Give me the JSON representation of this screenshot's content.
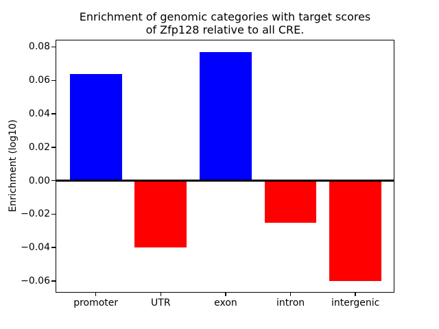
{
  "chart_data": {
    "type": "bar",
    "title": "Enrichment of genomic categories with target scores\nof Zfp128 relative to all CRE.",
    "xlabel": "",
    "ylabel": "Enrichment (log10)",
    "categories": [
      "promoter",
      "UTR",
      "exon",
      "intron",
      "intergenic"
    ],
    "values": [
      0.064,
      -0.04,
      0.077,
      -0.025,
      -0.06
    ],
    "bar_colors": [
      "#0000ff",
      "#ff0000",
      "#0000ff",
      "#ff0000",
      "#ff0000"
    ],
    "positive_color": "#0000ff",
    "negative_color": "#ff0000",
    "yticks": [
      0.08,
      0.06,
      0.04,
      0.02,
      0,
      -0.02,
      -0.04,
      -0.06
    ],
    "ytick_labels": [
      "0.08",
      "0.06",
      "0.04",
      "0.02",
      "0.00",
      "−0.02",
      "−0.04",
      "−0.06"
    ],
    "ylim": [
      -0.067,
      0.0843
    ],
    "xlim": [
      -0.62,
      4.6
    ],
    "bar_width": 0.8,
    "zero_line": true,
    "grid": false,
    "legend_position": "none",
    "axis_color": "#000000",
    "background_color": "#ffffff"
  }
}
